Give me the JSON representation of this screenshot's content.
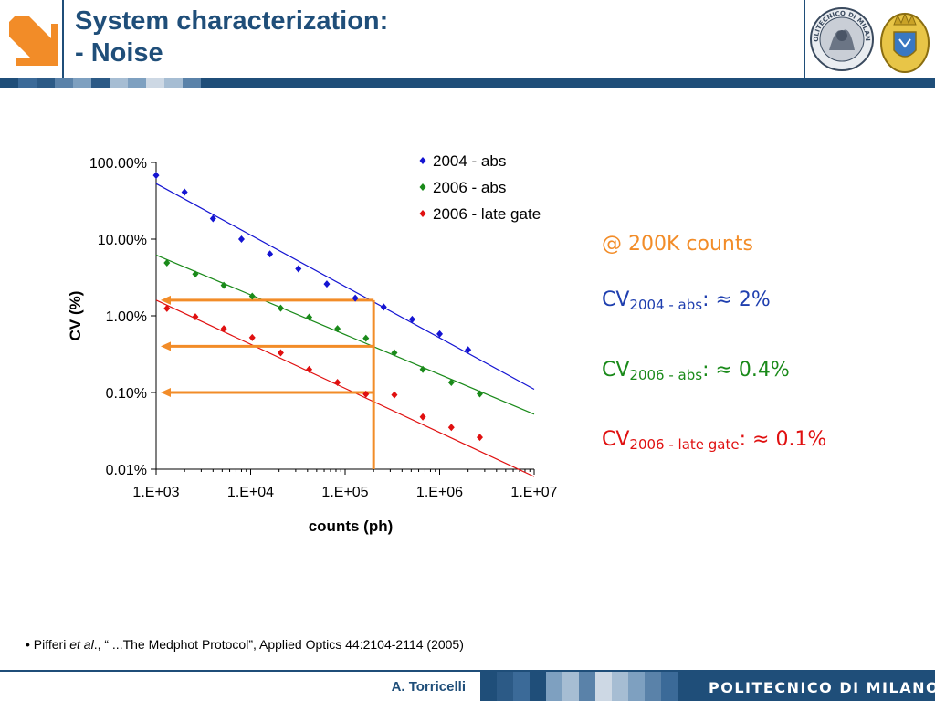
{
  "slide": {
    "title_line1": "System characterization:",
    "title_line2": "- Noise",
    "brand_color": "#1f4e79",
    "accent_color": "#f28c28"
  },
  "logo": {
    "name": "politecnico-arrow-logo",
    "color": "#f28c28"
  },
  "seal": {
    "text": "POLITECNICO DI MILANO"
  },
  "annotations": {
    "heading": "@ 200K counts",
    "items": [
      {
        "prefix": "CV",
        "subscript": "2004 - abs",
        "value": ": ≈ 2%",
        "color": "#1f3faf"
      },
      {
        "prefix": "CV",
        "subscript": "2006 - abs",
        "value": ": ≈ 0.4%",
        "color": "#1a8a1a"
      },
      {
        "prefix": "CV",
        "subscript": "2006 - late gate",
        "value": ": ≈ 0.1%",
        "color": "#e01010"
      }
    ],
    "heading_color": "#f28c28"
  },
  "reference": {
    "bullet": "• Pifferi ",
    "etal": "et al",
    "rest": "., “ ...The Medphot Protocol”, Applied Optics 44:2104-2114 (2005)"
  },
  "footer": {
    "author": "A. Torricelli",
    "brand": "POLITECNICO DI MILANO"
  },
  "chart_data": {
    "type": "scatter",
    "xlabel": "counts (ph)",
    "ylabel": "CV (%)",
    "x_scale": "log",
    "y_scale": "log",
    "xlim": [
      1000,
      10000000
    ],
    "ylim": [
      0.0001,
      1
    ],
    "x_ticks": [
      1000,
      10000,
      100000,
      1000000,
      10000000
    ],
    "x_tick_labels": [
      "1.E+03",
      "1.E+04",
      "1.E+05",
      "1.E+06",
      "1.E+07"
    ],
    "y_ticks": [
      0.0001,
      0.001,
      0.01,
      0.1,
      1
    ],
    "y_tick_labels": [
      "0.01%",
      "0.10%",
      "1.00%",
      "10.00%",
      "100.00%"
    ],
    "legend_position": "top-right",
    "series": [
      {
        "name": "2004 - abs",
        "color": "#1414d2",
        "points": [
          [
            1000,
            0.68
          ],
          [
            2000,
            0.41
          ],
          [
            4000,
            0.185
          ],
          [
            8000,
            0.1
          ],
          [
            16000,
            0.064
          ],
          [
            32000,
            0.041
          ],
          [
            64000,
            0.026
          ],
          [
            128000,
            0.017
          ],
          [
            256000,
            0.013
          ],
          [
            512000,
            0.009
          ],
          [
            1000000,
            0.0058
          ],
          [
            2000000,
            0.0036
          ]
        ],
        "trend": [
          [
            1000,
            0.53
          ],
          [
            10000000,
            0.0011
          ]
        ]
      },
      {
        "name": "2006 - abs",
        "color": "#1a8a1a",
        "points": [
          [
            1300,
            0.049
          ],
          [
            2600,
            0.035
          ],
          [
            5200,
            0.025
          ],
          [
            10400,
            0.018
          ],
          [
            20800,
            0.0126
          ],
          [
            41600,
            0.0096
          ],
          [
            83000,
            0.0068
          ],
          [
            166000,
            0.0051
          ],
          [
            332000,
            0.0033
          ],
          [
            664000,
            0.002
          ],
          [
            1330000,
            0.00135
          ],
          [
            2660000,
            0.00096
          ]
        ],
        "trend": [
          [
            1000,
            0.062
          ],
          [
            10000000,
            0.00052
          ]
        ]
      },
      {
        "name": "2006 - late gate",
        "color": "#e01010",
        "points": [
          [
            1300,
            0.0125
          ],
          [
            2600,
            0.0097
          ],
          [
            5200,
            0.0068
          ],
          [
            10400,
            0.0052
          ],
          [
            20800,
            0.0033
          ],
          [
            41600,
            0.002
          ],
          [
            83000,
            0.00135
          ],
          [
            166000,
            0.00095
          ],
          [
            332000,
            0.00093
          ],
          [
            664000,
            0.00048
          ],
          [
            1330000,
            0.00035
          ],
          [
            2660000,
            0.00026
          ]
        ],
        "trend": [
          [
            1000,
            0.016
          ],
          [
            10000000,
            8e-05
          ]
        ]
      }
    ],
    "guides": {
      "x_value": 200000,
      "y_values": [
        0.016,
        0.004,
        0.001
      ],
      "color": "#f28c28"
    }
  }
}
